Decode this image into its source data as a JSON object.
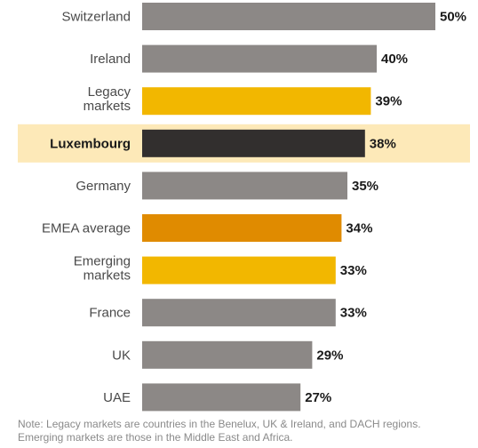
{
  "chart_data": {
    "type": "bar",
    "orientation": "horizontal",
    "categories": [
      "Switzerland",
      "Ireland",
      "Legacy markets",
      "Luxembourg",
      "Germany",
      "EMEA average",
      "Emerging markets",
      "France",
      "UK",
      "UAE"
    ],
    "values": [
      50,
      40,
      39,
      38,
      35,
      34,
      33,
      33,
      29,
      27
    ],
    "value_labels": [
      "50%",
      "40%",
      "39%",
      "38%",
      "35%",
      "34%",
      "33%",
      "33%",
      "29%",
      "27%"
    ],
    "highlight": "Luxembourg",
    "unit": "%",
    "xlim": [
      0,
      50
    ],
    "grid": false,
    "colors": {
      "default": "#8c8886",
      "legacy": "#f2b700",
      "emerging": "#f2b700",
      "highlight": "#322f2e",
      "average": "#e08b00",
      "highlight_band": "#fde9b8"
    },
    "bar_colors": [
      "default",
      "default",
      "legacy",
      "highlight",
      "default",
      "average",
      "emerging",
      "default",
      "default",
      "default"
    ]
  },
  "note": {
    "line1": "Note: Legacy markets are countries in the Benelux, UK & Ireland, and DACH regions.",
    "line2": "Emerging markets are those in the Middle East and Africa."
  }
}
